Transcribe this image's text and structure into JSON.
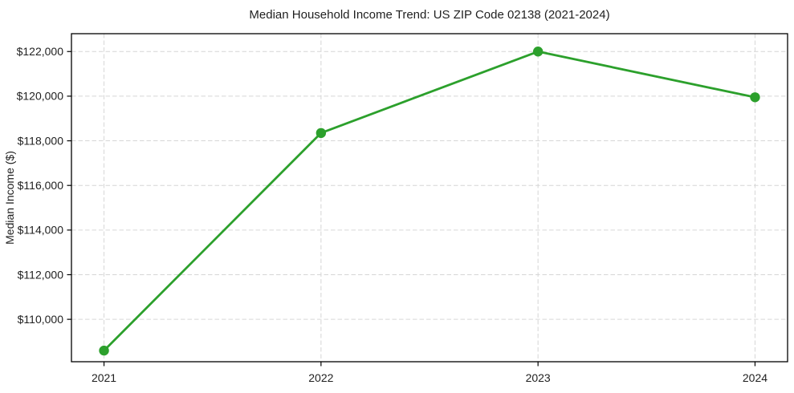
{
  "chart_data": {
    "type": "line",
    "title": "Median Household Income Trend: US ZIP Code 02138 (2021-2024)",
    "xlabel": "",
    "ylabel": "Median Income ($)",
    "x": [
      2021,
      2022,
      2023,
      2024
    ],
    "xtick_labels": [
      "2021",
      "2022",
      "2023",
      "2024"
    ],
    "series": [
      {
        "name": "Median Household Income",
        "values": [
          108600,
          118350,
          122000,
          119950
        ]
      }
    ],
    "yticks": [
      110000,
      112000,
      114000,
      116000,
      118000,
      120000,
      122000
    ],
    "ytick_labels": [
      "$110,000",
      "$112,000",
      "$114,000",
      "$116,000",
      "$118,000",
      "$120,000",
      "$122,000"
    ],
    "xlim": [
      2020.85,
      2024.15
    ],
    "ylim": [
      108100,
      122800
    ],
    "grid": true,
    "grid_style": "dashed",
    "legend": "none",
    "marker": "circle",
    "marker_radius": 6.2,
    "line_width": 2.8,
    "colors": {
      "line": "#2ca02c",
      "marker": "#2ca02c",
      "grid": "#d6d6d6",
      "axis": "#000000",
      "text": "#1f1f1f",
      "background": "#ffffff"
    }
  }
}
